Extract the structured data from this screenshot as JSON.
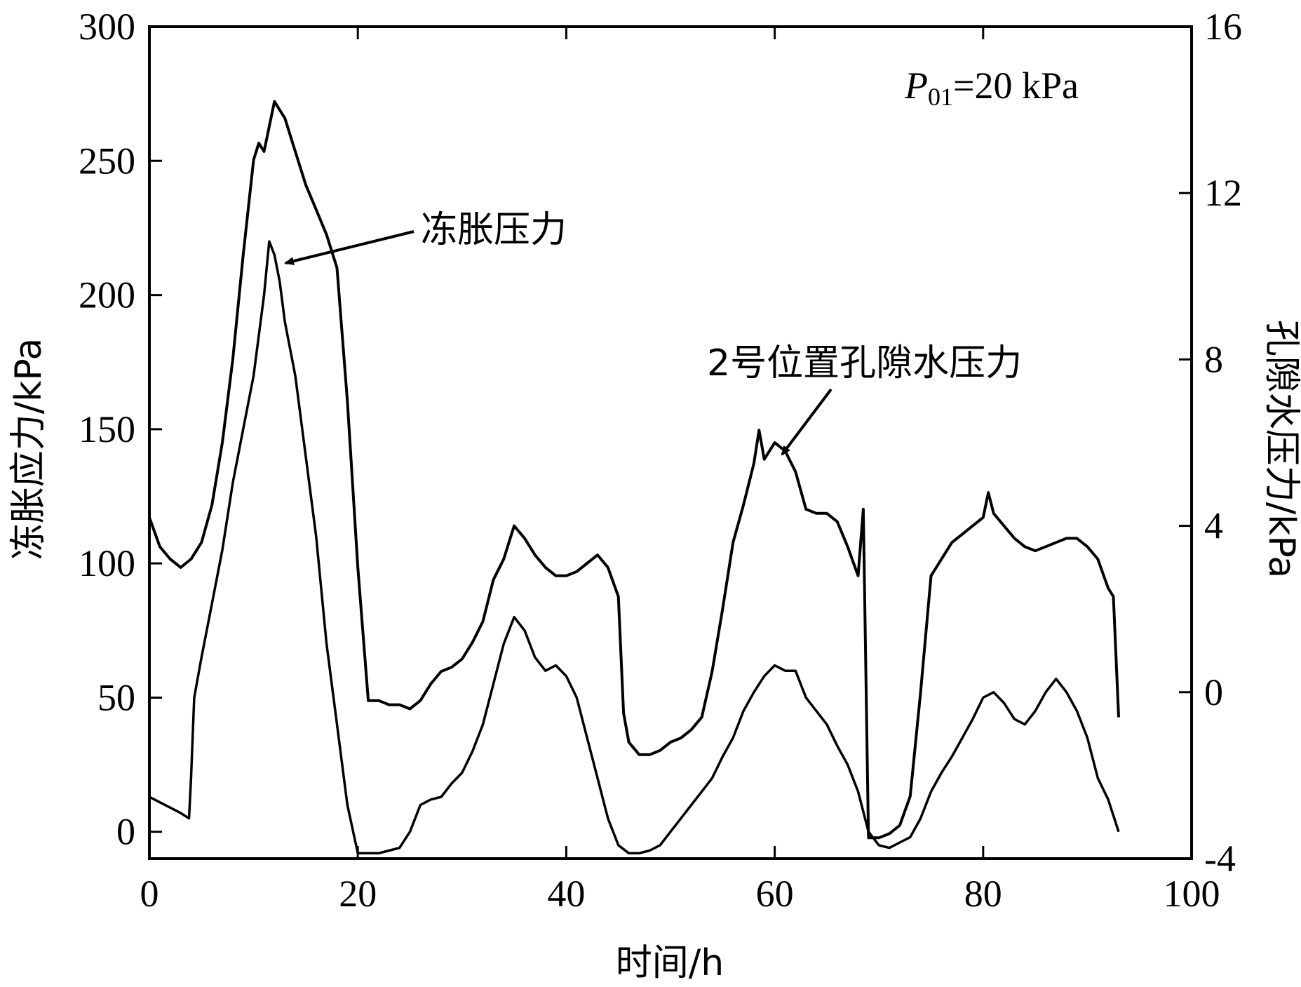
{
  "chart_data": {
    "type": "line",
    "xlabel": "时间/h",
    "ylabel_left": "冻胀应力/kPa",
    "ylabel_right": "孔隙水压力/kPa",
    "xlim": [
      0,
      100
    ],
    "ylim_left": [
      -10,
      300
    ],
    "ylim_right": [
      -4,
      16
    ],
    "x_ticks": [
      0,
      20,
      40,
      60,
      80,
      100
    ],
    "y_ticks_left": [
      0,
      50,
      100,
      150,
      200,
      250,
      300
    ],
    "y_ticks_right": [
      -4,
      0,
      4,
      8,
      12,
      16
    ],
    "grid": false,
    "annotations": {
      "frost": "冻胀压力",
      "pore": "2号位置孔隙水压力",
      "param_symbol": "P",
      "param_sub": "01",
      "param_value": "=20 kPa"
    },
    "series": [
      {
        "axis": "right",
        "x": [
          0,
          1,
          2,
          3,
          4,
          5,
          6,
          7,
          8,
          9,
          10,
          10.5,
          11,
          12,
          13,
          14,
          15,
          16,
          17,
          18,
          19,
          20,
          21,
          22,
          23,
          24,
          25,
          26,
          27,
          28,
          29,
          30,
          31,
          32,
          33,
          34,
          35,
          36,
          37,
          38,
          39,
          40,
          41,
          42,
          43,
          44,
          45,
          45.5,
          46,
          47,
          48,
          49,
          50,
          51,
          52,
          53,
          54,
          55,
          56,
          57,
          58,
          58.5,
          59,
          60,
          61,
          62,
          63,
          64,
          65,
          66,
          67,
          68,
          68.5,
          69,
          70,
          71,
          72,
          73,
          74,
          75,
          76,
          77,
          78,
          79,
          80,
          80.5,
          81,
          82,
          83,
          84,
          85,
          86,
          87,
          88,
          89,
          90,
          91,
          92,
          92.5,
          93
        ],
        "values": [
          4.2,
          3.5,
          3.2,
          3.0,
          3.2,
          3.6,
          4.5,
          6.0,
          8.0,
          10.5,
          12.8,
          13.2,
          13.0,
          14.2,
          13.8,
          13.0,
          12.2,
          11.6,
          11.0,
          10.2,
          7.0,
          3.0,
          -0.2,
          -0.2,
          -0.3,
          -0.3,
          -0.4,
          -0.2,
          0.2,
          0.5,
          0.6,
          0.8,
          1.2,
          1.7,
          2.7,
          3.2,
          4.0,
          3.7,
          3.3,
          3.0,
          2.8,
          2.8,
          2.9,
          3.1,
          3.3,
          3.0,
          2.3,
          -0.5,
          -1.2,
          -1.5,
          -1.5,
          -1.4,
          -1.2,
          -1.1,
          -0.9,
          -0.6,
          0.5,
          2.0,
          3.6,
          4.5,
          5.5,
          6.3,
          5.6,
          6.0,
          5.8,
          5.3,
          4.4,
          4.3,
          4.3,
          4.1,
          3.5,
          2.8,
          4.4,
          -3.5,
          -3.5,
          -3.4,
          -3.2,
          -2.5,
          0.0,
          2.8,
          3.2,
          3.6,
          3.8,
          4.0,
          4.2,
          4.8,
          4.3,
          4.0,
          3.7,
          3.5,
          3.4,
          3.5,
          3.6,
          3.7,
          3.7,
          3.5,
          3.2,
          2.5,
          2.3,
          -0.6
        ]
      },
      {
        "axis": "left",
        "x": [
          0,
          1,
          2,
          3,
          3.8,
          4,
          4.3,
          5,
          6,
          7,
          8,
          9,
          10,
          11,
          11.5,
          12,
          12.5,
          13,
          14,
          15,
          16,
          17,
          18,
          19,
          20,
          21,
          22,
          23,
          24,
          25,
          26,
          27,
          28,
          29,
          30,
          31,
          32,
          33,
          34,
          35,
          36,
          37,
          38,
          39,
          40,
          41,
          42,
          43,
          44,
          45,
          46,
          47,
          48,
          49,
          50,
          51,
          52,
          53,
          54,
          55,
          56,
          57,
          58,
          59,
          60,
          61,
          62,
          63,
          64,
          65,
          66,
          67,
          68,
          69,
          70,
          71,
          72,
          73,
          74,
          75,
          76,
          77,
          78,
          79,
          80,
          81,
          82,
          83,
          84,
          85,
          86,
          87,
          88,
          89,
          90,
          91,
          92,
          93
        ],
        "values": [
          13,
          11,
          9,
          7,
          5,
          20,
          50,
          65,
          85,
          105,
          130,
          150,
          170,
          200,
          220,
          215,
          205,
          190,
          170,
          140,
          110,
          70,
          40,
          10,
          -8,
          -8,
          -8,
          -7,
          -6,
          0,
          10,
          12,
          13,
          18,
          22,
          30,
          40,
          55,
          70,
          80,
          75,
          65,
          60,
          62,
          58,
          50,
          35,
          20,
          5,
          -5,
          -8,
          -8,
          -7,
          -5,
          0,
          5,
          10,
          15,
          20,
          28,
          35,
          45,
          52,
          58,
          62,
          60,
          60,
          50,
          45,
          40,
          32,
          25,
          15,
          0,
          -5,
          -6,
          -4,
          -2,
          5,
          15,
          22,
          28,
          35,
          42,
          50,
          52,
          48,
          42,
          40,
          45,
          52,
          57,
          52,
          45,
          35,
          20,
          12,
          0
        ]
      }
    ]
  }
}
